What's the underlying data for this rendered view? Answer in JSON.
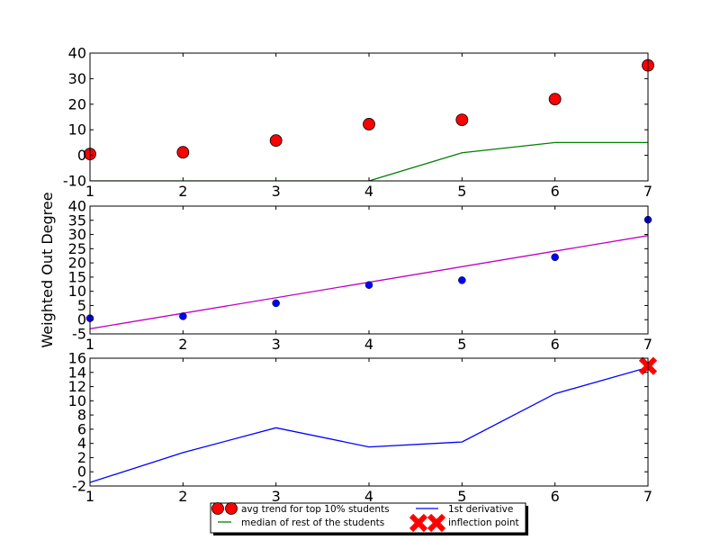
{
  "figure": {
    "ylabel": "Weighted Out Degree"
  },
  "legend": {
    "entries": [
      {
        "label": "avg trend for top 10% students",
        "marker": "big-red-circle-pair",
        "color": "#ff0000"
      },
      {
        "label": "median of rest of the students",
        "marker": "green-line",
        "color": "#008000"
      },
      {
        "label": "1st derivative",
        "marker": "blue-line",
        "color": "#0000ff"
      },
      {
        "label": "inflection point",
        "marker": "red-x-pair",
        "color": "#ff0000"
      }
    ]
  },
  "chart_data": [
    {
      "type": "scatter",
      "xlim": [
        1,
        7
      ],
      "ylim": [
        -10,
        40
      ],
      "xticks": [
        "1",
        "2",
        "3",
        "4",
        "5",
        "6",
        "7"
      ],
      "yticks": [
        "-10",
        "0",
        "10",
        "20",
        "30",
        "40"
      ],
      "grid": false,
      "series": [
        {
          "name": "avg trend for top 10% students",
          "kind": "marker",
          "color": "#ff0000",
          "x": [
            1,
            2,
            3,
            4,
            5,
            6,
            7
          ],
          "y": [
            0.5,
            1.2,
            5.8,
            12.2,
            13.9,
            22.0,
            35.2
          ]
        },
        {
          "name": "median of rest of the students",
          "kind": "line",
          "color": "#008000",
          "x": [
            1,
            2,
            3,
            4,
            5,
            6,
            7
          ],
          "y": [
            -10,
            -10,
            -10,
            -10,
            1,
            5,
            5
          ]
        }
      ]
    },
    {
      "type": "scatter",
      "xlim": [
        1,
        7
      ],
      "ylim": [
        -5,
        40
      ],
      "xticks": [
        "1",
        "2",
        "3",
        "4",
        "5",
        "6",
        "7"
      ],
      "yticks": [
        "-5",
        "0",
        "5",
        "10",
        "15",
        "20",
        "25",
        "30",
        "35",
        "40"
      ],
      "grid": false,
      "series": [
        {
          "kind": "marker",
          "color": "#0000ff",
          "x": [
            1,
            2,
            3,
            4,
            5,
            6,
            7
          ],
          "y": [
            0.5,
            1.2,
            5.8,
            12.2,
            13.9,
            22.0,
            35.2
          ]
        },
        {
          "kind": "line",
          "color": "#bf00bf",
          "x": [
            1,
            7
          ],
          "y": [
            -3.2,
            29.6
          ]
        }
      ]
    },
    {
      "type": "line",
      "xlim": [
        1,
        7
      ],
      "ylim": [
        -2,
        16
      ],
      "xticks": [
        "1",
        "2",
        "3",
        "4",
        "5",
        "6",
        "7"
      ],
      "yticks": [
        "-2",
        "0",
        "2",
        "4",
        "6",
        "8",
        "10",
        "12",
        "14",
        "16"
      ],
      "grid": false,
      "series": [
        {
          "name": "1st derivative",
          "kind": "line",
          "color": "#0000ff",
          "x": [
            1,
            2,
            3,
            4,
            5,
            6,
            7
          ],
          "y": [
            -1.5,
            2.7,
            6.2,
            3.5,
            4.2,
            11.0,
            14.7
          ]
        },
        {
          "name": "inflection point",
          "kind": "x-marker",
          "color": "#ff0000",
          "x": [
            7
          ],
          "y": [
            14.9
          ]
        }
      ]
    }
  ]
}
